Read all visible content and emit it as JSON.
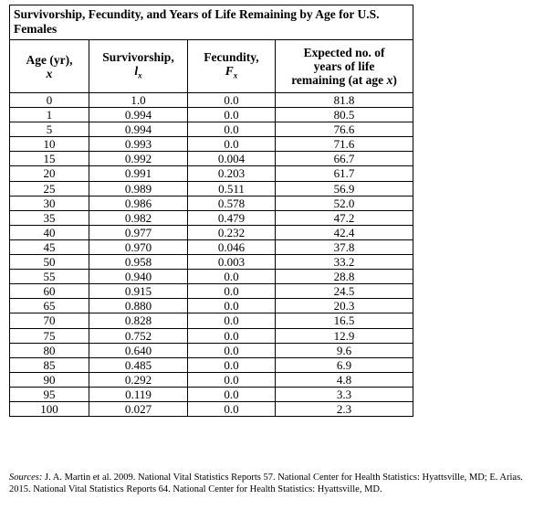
{
  "title": "Survivorship, Fecundity, and Years of Life Remaining by Age for U.S. Females",
  "headers": {
    "age_line1": "Age (yr),",
    "age_var": "x",
    "surv_line1": "Survivorship,",
    "surv_var": "lx",
    "fec_line1": "Fecundity,",
    "fec_var": "Fx",
    "exp_line1": "Expected no. of",
    "exp_line2": "years of life",
    "exp_line3": "remaining (at age x)"
  },
  "rows": [
    [
      "0",
      "1.0",
      "0.0",
      "81.8"
    ],
    [
      "1",
      "0.994",
      "0.0",
      "80.5"
    ],
    [
      "5",
      "0.994",
      "0.0",
      "76.6"
    ],
    [
      "10",
      "0.993",
      "0.0",
      "71.6"
    ],
    [
      "15",
      "0.992",
      "0.004",
      "66.7"
    ],
    [
      "20",
      "0.991",
      "0.203",
      "61.7"
    ],
    [
      "25",
      "0.989",
      "0.511",
      "56.9"
    ],
    [
      "30",
      "0.986",
      "0.578",
      "52.0"
    ],
    [
      "35",
      "0.982",
      "0.479",
      "47.2"
    ],
    [
      "40",
      "0.977",
      "0.232",
      "42.4"
    ],
    [
      "45",
      "0.970",
      "0.046",
      "37.8"
    ],
    [
      "50",
      "0.958",
      "0.003",
      "33.2"
    ],
    [
      "55",
      "0.940",
      "0.0",
      "28.8"
    ],
    [
      "60",
      "0.915",
      "0.0",
      "24.5"
    ],
    [
      "65",
      "0.880",
      "0.0",
      "20.3"
    ],
    [
      "70",
      "0.828",
      "0.0",
      "16.5"
    ],
    [
      "75",
      "0.752",
      "0.0",
      "12.9"
    ],
    [
      "80",
      "0.640",
      "0.0",
      "9.6"
    ],
    [
      "85",
      "0.485",
      "0.0",
      "6.9"
    ],
    [
      "90",
      "0.292",
      "0.0",
      "4.8"
    ],
    [
      "95",
      "0.119",
      "0.0",
      "3.3"
    ],
    [
      "100",
      "0.027",
      "0.0",
      "2.3"
    ]
  ],
  "sources_label": "Sources:",
  "sources_text": " J. A. Martin et al. 2009. National Vital Statistics Reports 57. National Center for Health Statistics: Hyattsville, MD; E. Arias. 2015. National Vital Statistics Reports 64. National Center for Health Statistics: Hyattsville, MD."
}
